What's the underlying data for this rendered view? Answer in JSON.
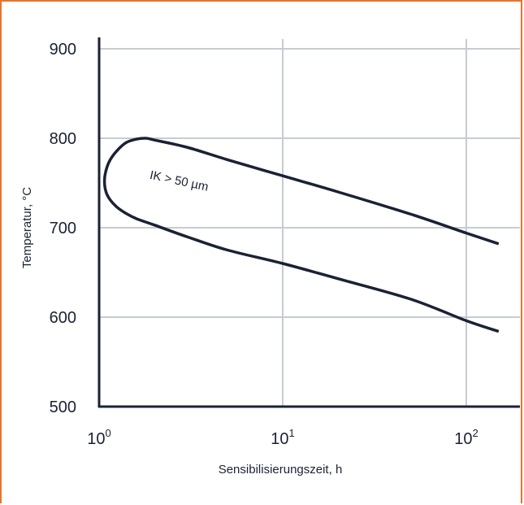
{
  "chart_data": {
    "type": "line",
    "xscale": "log",
    "xlim": [
      1,
      150
    ],
    "ylim": [
      500,
      900
    ],
    "grid": true,
    "xlabel": "Sensibilisierungszeit, h",
    "ylabel": "Temperatur, °C",
    "x_ticks": [
      {
        "value": 1,
        "base": "10",
        "exp": "0"
      },
      {
        "value": 10,
        "base": "10",
        "exp": "1"
      },
      {
        "value": 100,
        "base": "10",
        "exp": "2"
      }
    ],
    "y_ticks": [
      500,
      600,
      700,
      800,
      900
    ],
    "series": [
      {
        "values": [
          [
            150,
            682
          ],
          [
            100,
            694
          ],
          [
            50,
            715
          ],
          [
            20,
            740
          ],
          [
            10,
            758
          ],
          [
            5,
            776
          ],
          [
            3,
            790
          ],
          [
            2,
            798
          ],
          [
            1.8,
            800
          ],
          [
            1.6,
            799
          ],
          [
            1.4,
            795
          ],
          [
            1.25,
            786
          ],
          [
            1.15,
            776
          ],
          [
            1.09,
            764
          ],
          [
            1.07,
            752
          ],
          [
            1.09,
            740
          ],
          [
            1.15,
            731
          ],
          [
            1.25,
            723
          ],
          [
            1.4,
            716
          ],
          [
            1.6,
            710
          ],
          [
            2,
            703
          ],
          [
            3,
            690
          ],
          [
            5,
            675
          ],
          [
            10,
            660
          ],
          [
            20,
            643
          ],
          [
            50,
            620
          ],
          [
            100,
            596
          ],
          [
            150,
            584
          ]
        ]
      }
    ],
    "annotations": [
      {
        "text": "IK > 50 µm",
        "x": 2.7,
        "y": 748,
        "rotate": 12
      }
    ]
  },
  "colors": {
    "line": "#1a2233",
    "grid": "#c6ccd3",
    "axis": "#1a2233",
    "frame": "#e8742c"
  }
}
